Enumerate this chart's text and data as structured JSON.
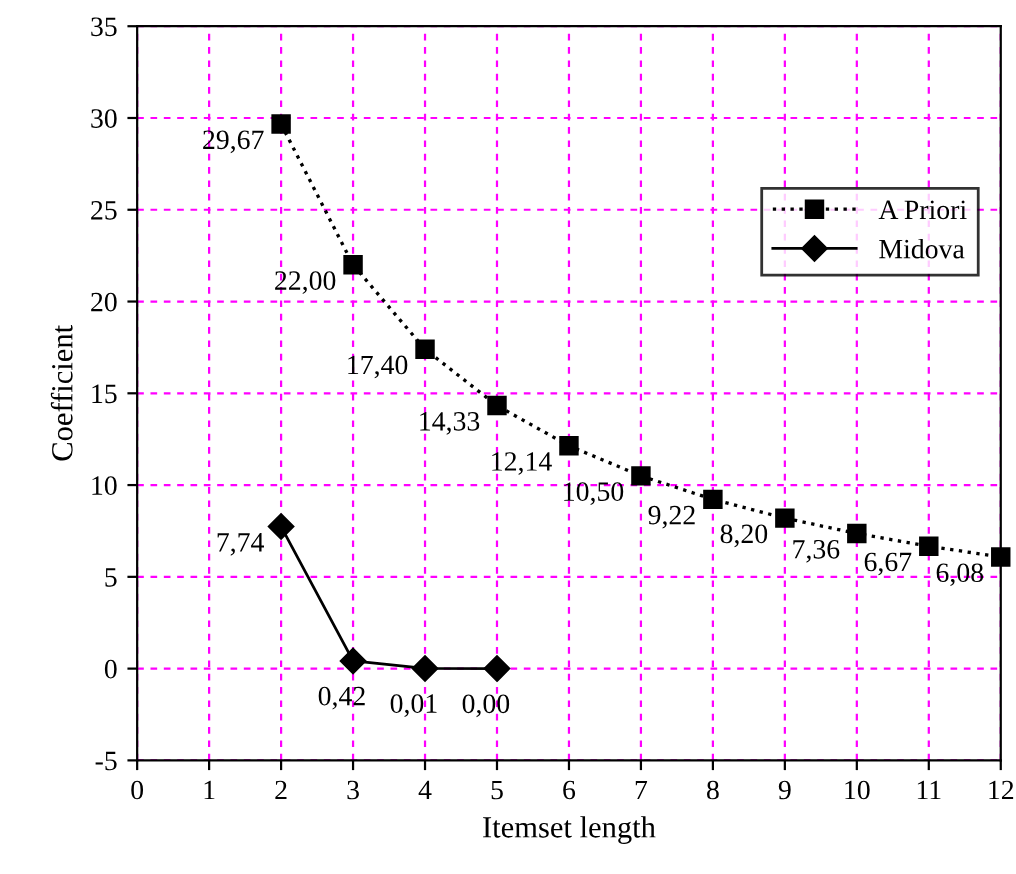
{
  "chart_data": {
    "type": "line",
    "xlabel": "Itemset length",
    "ylabel": "Coefficient",
    "xlim": [
      0,
      12
    ],
    "xticks": [
      0,
      1,
      2,
      3,
      4,
      5,
      6,
      7,
      8,
      9,
      10,
      11,
      12
    ],
    "ylim": [
      -5,
      35
    ],
    "yticks": [
      -5,
      0,
      5,
      10,
      15,
      20,
      25,
      30,
      35
    ],
    "grid": true,
    "legend": "right",
    "series": [
      {
        "name": "A Priori",
        "color": "#000000",
        "marker": "square",
        "line_style": "dotted",
        "x": [
          2,
          3,
          4,
          5,
          6,
          7,
          8,
          9,
          10,
          11,
          12
        ],
        "values": [
          29.67,
          22.0,
          17.4,
          14.33,
          12.14,
          10.5,
          9.22,
          8.2,
          7.36,
          6.67,
          6.08
        ],
        "value_labels": [
          "29,67",
          "22,00",
          "17,40",
          "14,33",
          "12,14",
          "10,50",
          "9,22",
          "8,20",
          "7,36",
          "6,67",
          "6,08"
        ]
      },
      {
        "name": "Midova",
        "color": "#000000",
        "marker": "diamond",
        "line_style": "solid",
        "x": [
          2,
          3,
          4,
          5
        ],
        "values": [
          7.74,
          0.42,
          0.01,
          0.0
        ],
        "value_labels": [
          "7,74",
          "0,42",
          "0,01",
          "0,00"
        ]
      }
    ]
  }
}
